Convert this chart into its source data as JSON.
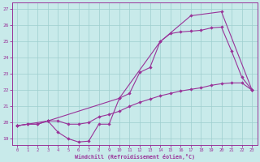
{
  "xlabel": "Windchill (Refroidissement éolien,°C)",
  "bg_color": "#c8eaea",
  "grid_color": "#9ecece",
  "line_color": "#993399",
  "xlim": [
    -0.5,
    23.5
  ],
  "ylim": [
    18.6,
    27.4
  ],
  "xticks": [
    0,
    1,
    2,
    3,
    4,
    5,
    6,
    7,
    8,
    9,
    10,
    11,
    12,
    13,
    14,
    15,
    16,
    17,
    18,
    19,
    20,
    21,
    22,
    23
  ],
  "yticks": [
    19,
    20,
    21,
    22,
    23,
    24,
    25,
    26,
    27
  ],
  "line1_x": [
    0,
    1,
    2,
    3,
    4,
    5,
    6,
    7,
    8,
    9,
    10,
    11,
    12,
    13,
    14,
    15,
    16,
    17,
    18,
    19,
    20,
    21,
    22,
    23
  ],
  "line1_y": [
    19.8,
    19.9,
    19.9,
    20.1,
    19.4,
    19.0,
    18.8,
    18.85,
    19.9,
    19.9,
    21.5,
    21.8,
    23.1,
    23.4,
    25.0,
    25.5,
    25.6,
    25.65,
    25.7,
    25.85,
    25.9,
    24.4,
    22.8,
    22.0
  ],
  "line2_x": [
    0,
    1,
    2,
    3,
    4,
    5,
    6,
    7,
    8,
    9,
    10,
    11,
    12,
    13,
    14,
    15,
    16,
    17,
    18,
    19,
    20,
    21,
    22,
    23
  ],
  "line2_y": [
    19.8,
    19.9,
    19.9,
    20.1,
    20.1,
    19.9,
    19.9,
    20.0,
    20.35,
    20.5,
    20.7,
    21.0,
    21.25,
    21.45,
    21.65,
    21.8,
    21.95,
    22.05,
    22.15,
    22.3,
    22.4,
    22.45,
    22.45,
    22.0
  ],
  "line3_x": [
    0,
    3,
    10,
    14,
    17,
    20,
    23
  ],
  "line3_y": [
    19.8,
    20.1,
    21.5,
    25.0,
    26.6,
    26.85,
    22.0
  ]
}
